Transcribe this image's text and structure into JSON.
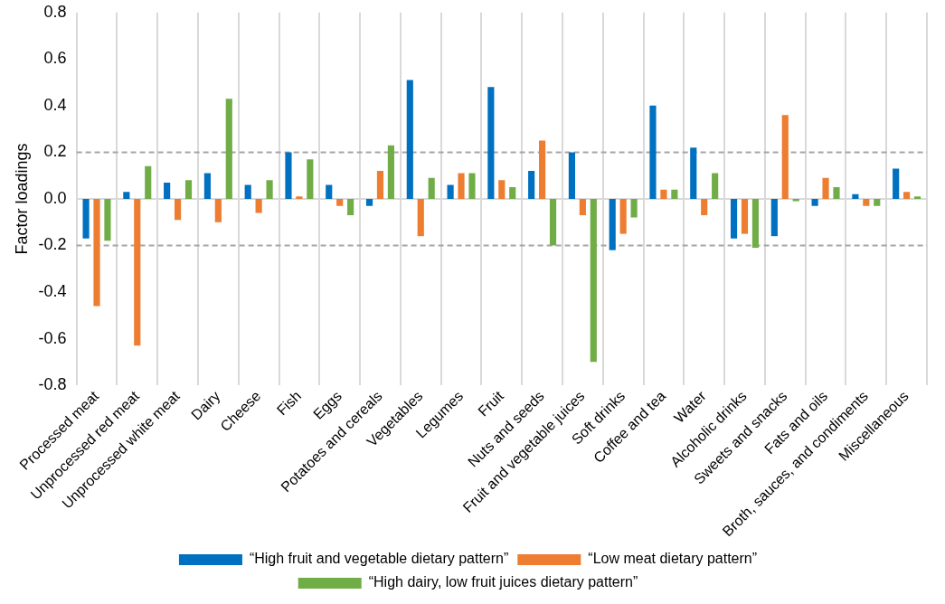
{
  "chart_data": {
    "type": "bar",
    "ylabel": "Factor loadings",
    "categories": [
      "Processed meat",
      "Unprocessed red meat",
      "Unprocessed white meat",
      "Dairy",
      "Cheese",
      "Fish",
      "Eggs",
      "Potatoes and cereals",
      "Vegetables",
      "Legumes",
      "Fruit",
      "Nuts and seeds",
      "Fruit and vegetable juices",
      "Soft drinks",
      "Coffee and tea",
      "Water",
      "Alcoholic drinks",
      "Sweets and snacks",
      "Fats and oils",
      "Broth, sauces, and condiments",
      "Miscellaneous"
    ],
    "series": [
      {
        "name": "“High fruit and vegetable dietary pattern”",
        "color": "#0070c0",
        "values": [
          -0.17,
          0.03,
          0.07,
          0.11,
          0.06,
          0.2,
          0.06,
          -0.03,
          0.51,
          0.06,
          0.48,
          0.12,
          0.2,
          -0.22,
          0.4,
          0.22,
          -0.17,
          -0.16,
          -0.03,
          0.02,
          0.13
        ]
      },
      {
        "name": "“Low meat dietary pattern”",
        "color": "#ed7d31",
        "values": [
          -0.46,
          -0.63,
          -0.09,
          -0.1,
          -0.06,
          0.01,
          -0.03,
          0.12,
          -0.16,
          0.11,
          0.08,
          0.25,
          -0.07,
          -0.15,
          0.04,
          -0.07,
          -0.15,
          0.36,
          0.09,
          -0.03,
          0.03
        ]
      },
      {
        "name": "“High dairy, low fruit juices dietary pattern”",
        "color": "#70ad47",
        "values": [
          -0.18,
          0.14,
          0.08,
          0.43,
          0.08,
          0.17,
          -0.07,
          0.23,
          0.09,
          0.11,
          0.05,
          -0.2,
          -0.7,
          -0.08,
          0.04,
          0.11,
          -0.21,
          -0.01,
          0.05,
          -0.03,
          0.01
        ]
      }
    ],
    "ylim": [
      -0.8,
      0.8
    ],
    "yticks": [
      -0.8,
      -0.6,
      -0.4,
      -0.2,
      {
        "value": 0,
        "label": "0.0"
      },
      0.2,
      0.4,
      0.6,
      0.8
    ],
    "ref_lines": [
      {
        "axis": "y",
        "value": 0,
        "color": "#d9d9d9",
        "line_style": "solid"
      },
      {
        "axis": "y",
        "value": 0.2,
        "color": "#a6a6a6",
        "line_style": "dashed"
      },
      {
        "axis": "y",
        "value": -0.2,
        "color": "#a6a6a6",
        "line_style": "dashed"
      }
    ],
    "grid": "x",
    "legend": "bottom"
  }
}
